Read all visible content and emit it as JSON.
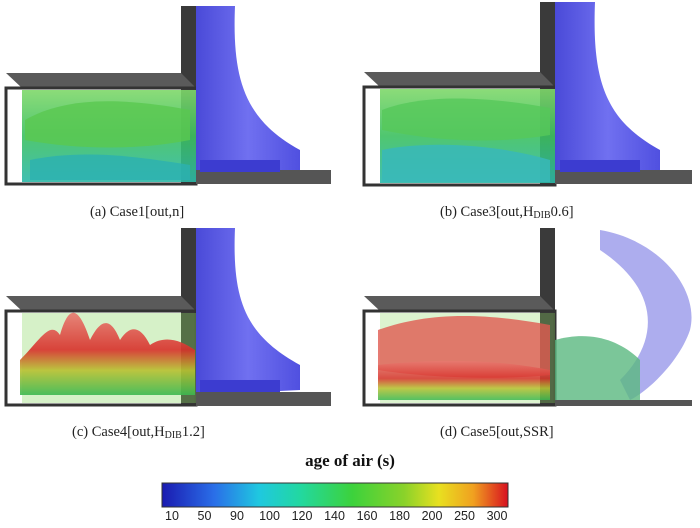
{
  "panels": [
    {
      "caption_prefix": "(a) Case1[out,n]",
      "sub": "",
      "caption_suffix": ""
    },
    {
      "caption_prefix": "(b) Case3[out,H",
      "sub": "DIB",
      "caption_suffix": "0.6]"
    },
    {
      "caption_prefix": "(c) Case4[out,H",
      "sub": "DIB",
      "caption_suffix": "1.2]"
    },
    {
      "caption_prefix": "(d) Case5[out,SSR]",
      "sub": "",
      "caption_suffix": ""
    }
  ],
  "legend": {
    "title": "age of air (s)",
    "ticks": [
      "10",
      "50",
      "90",
      "100",
      "120",
      "140",
      "160",
      "180",
      "200",
      "250",
      "300"
    ],
    "colors": [
      "#1a1ab0",
      "#2a6ee8",
      "#1fc8e0",
      "#22d8a0",
      "#3cd23c",
      "#8ad22a",
      "#e8e020",
      "#f0a020",
      "#e83020",
      "#c8102a"
    ]
  }
}
